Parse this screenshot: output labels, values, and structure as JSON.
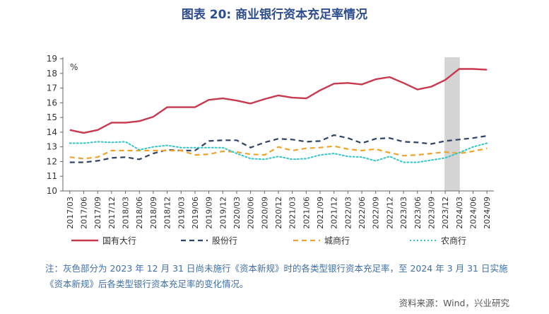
{
  "title": "图表 20: 商业银行资本充足率情况",
  "note": "注：灰色部分为 2023 年 12 月 31 日尚未施行《资本新规》时的各类型银行资本充足率，至 2024 年 3 月 31 日实施《资本新规》后各类型银行资本充足率的变化情况。",
  "source": "资料来源：Wind，兴业研究",
  "chart_data": {
    "type": "line",
    "title": "图表 20: 商业银行资本充足率情况",
    "unit_label": "%",
    "xlabel": "",
    "ylabel": "",
    "ylim": [
      10,
      19
    ],
    "yticks": [
      10,
      11,
      12,
      13,
      14,
      15,
      16,
      17,
      18,
      19
    ],
    "grid": false,
    "legend_position": "bottom",
    "highlight_band": {
      "from": "2023/12",
      "to": "2024/03",
      "color": "#cfcfcf"
    },
    "categories": [
      "2017/03",
      "2017/06",
      "2017/09",
      "2017/12",
      "2018/03",
      "2018/06",
      "2018/09",
      "2018/12",
      "2019/03",
      "2019/06",
      "2019/09",
      "2019/12",
      "2020/03",
      "2020/06",
      "2020/09",
      "2020/12",
      "2021/03",
      "2021/06",
      "2021/09",
      "2021/12",
      "2022/03",
      "2022/06",
      "2022/09",
      "2022/12",
      "2023/03",
      "2023/06",
      "2023/09",
      "2023/12",
      "2024/03",
      "2024/06",
      "2024/09"
    ],
    "series": [
      {
        "name": "国有大行",
        "color": "#c8384e",
        "style": "solid",
        "width": 2.4,
        "values": [
          14.15,
          13.95,
          14.15,
          14.65,
          14.65,
          14.75,
          15.05,
          15.7,
          15.7,
          15.7,
          16.2,
          16.3,
          16.15,
          15.95,
          16.25,
          16.5,
          16.35,
          16.3,
          16.85,
          17.3,
          17.35,
          17.25,
          17.6,
          17.75,
          17.35,
          16.9,
          17.1,
          17.55,
          18.3,
          18.3,
          18.25
        ]
      },
      {
        "name": "股份行",
        "color": "#2e4366",
        "style": "dash",
        "width": 2.2,
        "values": [
          11.95,
          11.95,
          12.05,
          12.25,
          12.3,
          12.15,
          12.55,
          12.8,
          12.75,
          12.75,
          13.4,
          13.45,
          13.45,
          12.95,
          13.3,
          13.55,
          13.5,
          13.35,
          13.4,
          13.8,
          13.6,
          13.25,
          13.55,
          13.6,
          13.35,
          13.3,
          13.2,
          13.4,
          13.5,
          13.6,
          13.75
        ]
      },
      {
        "name": "城商行",
        "color": "#f0a32a",
        "style": "dash",
        "width": 2.2,
        "values": [
          12.3,
          12.2,
          12.3,
          12.75,
          12.75,
          12.75,
          12.75,
          12.75,
          12.75,
          12.45,
          12.5,
          12.7,
          12.65,
          12.5,
          12.45,
          13.0,
          12.75,
          12.9,
          12.95,
          13.05,
          12.85,
          12.75,
          12.85,
          12.6,
          12.4,
          12.45,
          12.55,
          12.65,
          12.55,
          12.7,
          12.9
        ]
      },
      {
        "name": "农商行",
        "color": "#35c4c8",
        "style": "dot",
        "width": 2.0,
        "values": [
          13.25,
          13.25,
          13.35,
          13.3,
          13.35,
          12.8,
          13.0,
          13.1,
          12.95,
          12.95,
          12.95,
          12.95,
          12.55,
          12.2,
          12.15,
          12.35,
          12.15,
          12.2,
          12.45,
          12.55,
          12.35,
          12.3,
          12.05,
          12.35,
          11.95,
          11.95,
          12.1,
          12.25,
          12.6,
          13.0,
          13.25
        ]
      }
    ]
  }
}
